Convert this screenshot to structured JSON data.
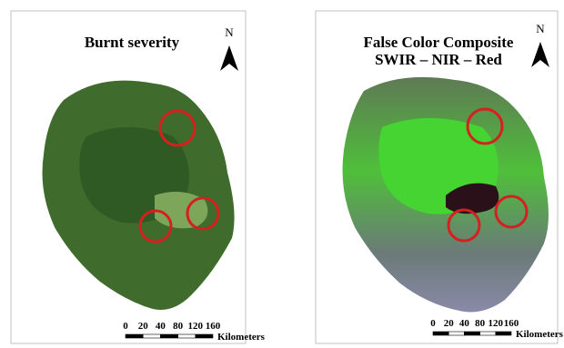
{
  "panels": [
    {
      "title": [
        "Burnt severity"
      ],
      "north": "N",
      "scale": {
        "labels": [
          "0",
          "20",
          "40",
          "80",
          "120",
          "160"
        ],
        "unit": "Kilometers"
      }
    },
    {
      "title": [
        "False Color Composite",
        "SWIR – NIR – Red"
      ],
      "north": "N",
      "scale": {
        "labels": [
          "0",
          "20",
          "40",
          "80",
          "120",
          "160"
        ],
        "unit": "Kilometers"
      }
    }
  ]
}
